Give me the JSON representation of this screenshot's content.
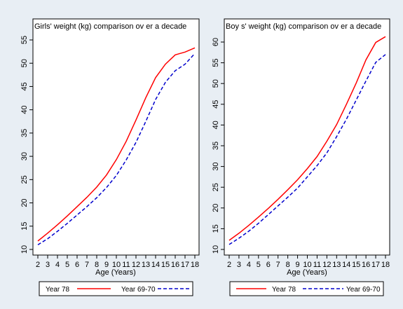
{
  "chart_data": [
    {
      "type": "line",
      "title": "Girls' weight (kg) comparison ov er a decade",
      "xlabel": "Age (Years)",
      "ylabel": "",
      "x": [
        2,
        3,
        4,
        5,
        6,
        7,
        8,
        9,
        10,
        11,
        12,
        13,
        14,
        15,
        16,
        17,
        18
      ],
      "xlim": [
        2,
        18
      ],
      "ylim": [
        9,
        56
      ],
      "y_ticks": [
        10,
        15,
        20,
        25,
        30,
        35,
        40,
        45,
        50,
        55
      ],
      "grid": false,
      "legend_position": "bottom",
      "series": [
        {
          "name": "Year 78",
          "color": "#ff0000",
          "dash": "solid",
          "values": [
            11.8,
            13.5,
            15.3,
            17.2,
            19.2,
            21.2,
            23.4,
            26.0,
            29.3,
            33.2,
            37.8,
            42.6,
            46.9,
            49.8,
            51.8,
            52.4,
            53.3
          ]
        },
        {
          "name": "Year 69-70",
          "color": "#0000cc",
          "dash": "dashed",
          "values": [
            11.0,
            12.3,
            13.9,
            15.6,
            17.4,
            19.2,
            21.1,
            23.3,
            25.9,
            29.2,
            33.0,
            37.5,
            42.2,
            45.9,
            48.4,
            49.8,
            52.1
          ]
        }
      ]
    },
    {
      "type": "line",
      "title": "Boy s' weight (kg) comparison ov er a decade",
      "xlabel": "Age (Years)",
      "ylabel": "",
      "x": [
        2,
        3,
        4,
        5,
        6,
        7,
        8,
        9,
        10,
        11,
        12,
        13,
        14,
        15,
        16,
        17,
        18
      ],
      "xlim": [
        2,
        18
      ],
      "ylim": [
        9,
        62
      ],
      "y_ticks": [
        10,
        15,
        20,
        25,
        30,
        35,
        40,
        45,
        50,
        55,
        60
      ],
      "grid": false,
      "legend_position": "bottom",
      "series": [
        {
          "name": "Year 78",
          "color": "#ff0000",
          "dash": "solid",
          "values": [
            12.2,
            13.9,
            15.8,
            17.8,
            19.9,
            22.1,
            24.4,
            26.8,
            29.5,
            32.4,
            36.1,
            40.1,
            45.0,
            50.1,
            55.7,
            59.9,
            61.3
          ]
        },
        {
          "name": "Year 69-70",
          "color": "#0000cc",
          "dash": "dashed",
          "values": [
            11.2,
            12.7,
            14.4,
            16.3,
            18.4,
            20.5,
            22.6,
            24.8,
            27.5,
            30.2,
            33.3,
            37.2,
            41.4,
            46.0,
            50.6,
            55.1,
            57.0
          ]
        }
      ]
    }
  ]
}
